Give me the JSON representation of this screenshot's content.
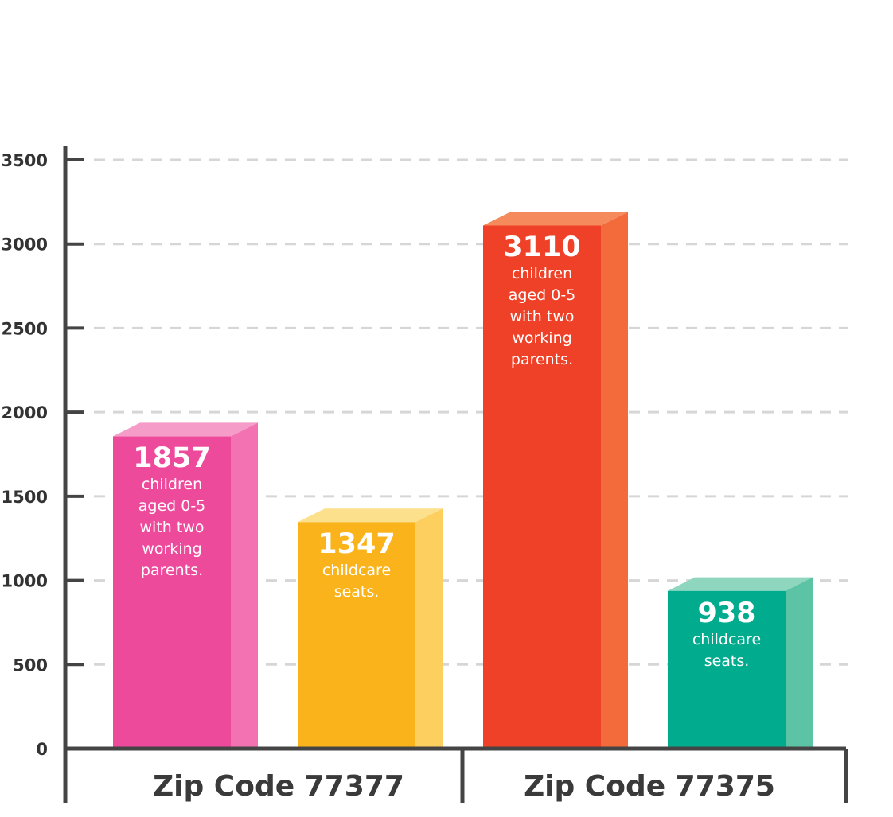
{
  "chart_data": {
    "type": "bar",
    "ylim": [
      0,
      3500
    ],
    "yticks": [
      0,
      500,
      1000,
      1500,
      2000,
      2500,
      3000,
      3500
    ],
    "grid": true,
    "groups": [
      {
        "label": "Zip Code 77377",
        "bars": [
          {
            "value": 1857,
            "display": "1857",
            "desc": [
              "children",
              "aged 0-5",
              "with two",
              "working",
              "parents."
            ],
            "color": "#ee4a9c",
            "side": "#f272b2",
            "top": "#f59cc8"
          },
          {
            "value": 1347,
            "display": "1347",
            "desc": [
              "childcare",
              "seats."
            ],
            "color": "#fbb31b",
            "side": "#fdcf5e",
            "top": "#fde08c"
          }
        ]
      },
      {
        "label": "Zip Code 77375",
        "bars": [
          {
            "value": 3110,
            "display": "3110",
            "desc": [
              "children",
              "aged 0-5",
              "with two",
              "working",
              "parents."
            ],
            "color": "#ee4127",
            "side": "#f36b3a",
            "top": "#f58a5d"
          },
          {
            "value": 938,
            "display": "938",
            "desc": [
              "childcare",
              "seats."
            ],
            "color": "#00ab8e",
            "side": "#5cc3a4",
            "top": "#8fd6bf"
          }
        ]
      }
    ]
  }
}
